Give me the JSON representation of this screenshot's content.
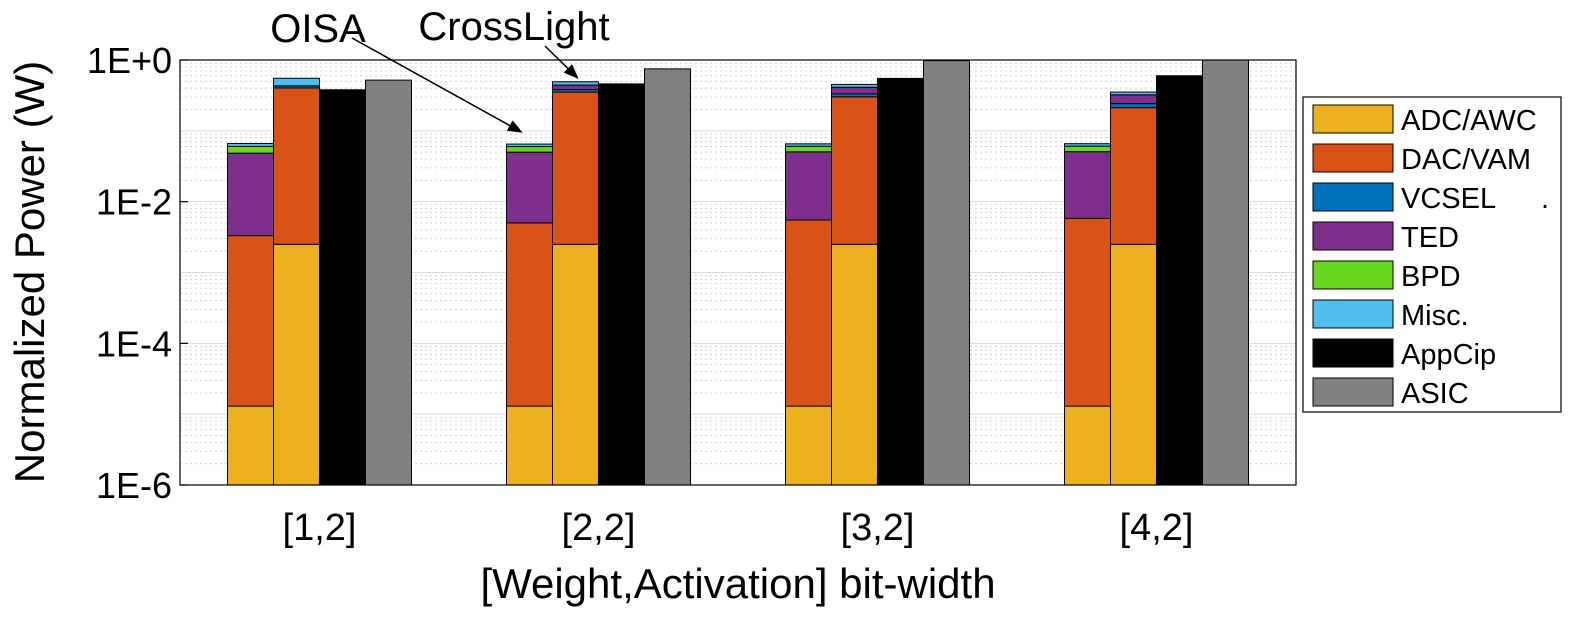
{
  "chart_data": {
    "type": "bar",
    "stacked_groups": true,
    "ylabel": "Normalized Power  (W)",
    "xlabel": "[Weight,Activation] bit-width",
    "yscale": "log",
    "ylim": [
      1e-06,
      1
    ],
    "ytick_values": [
      1e-06,
      0.0001,
      0.01,
      1
    ],
    "ytick_labels": [
      "1E-6",
      "1E-4",
      "1E-2",
      "1E+0"
    ],
    "grid": true,
    "legend_position": "right",
    "categories": [
      "[1,2]",
      "[2,2]",
      "[3,2]",
      "[4,2]"
    ],
    "components": [
      {
        "name": "ADC/AWC",
        "color": "#EDB120"
      },
      {
        "name": "DAC/VAM",
        "color": "#D95319"
      },
      {
        "name": "VCSEL",
        "color": "#0072BD"
      },
      {
        "name": "TED",
        "color": "#7E2F8E"
      },
      {
        "name": "BPD",
        "color": "#66D61E"
      },
      {
        "name": "Misc.",
        "color": "#4DBEEE"
      },
      {
        "name": "AppCip",
        "color": "#000000"
      },
      {
        "name": "ASIC",
        "color": "#808080"
      }
    ],
    "series": [
      {
        "name": "OISA",
        "stacked": true,
        "values": [
          {
            "ADC/AWC": 1.3e-05,
            "DAC/VAM": 0.0033,
            "VCSEL": 0.0,
            "TED": 0.045,
            "BPD": 0.012,
            "Misc.": 0.006
          },
          {
            "ADC/AWC": 1.3e-05,
            "DAC/VAM": 0.005,
            "VCSEL": 0.0,
            "TED": 0.045,
            "BPD": 0.01,
            "Misc.": 0.005
          },
          {
            "ADC/AWC": 1.3e-05,
            "DAC/VAM": 0.0055,
            "VCSEL": 0.0,
            "TED": 0.045,
            "BPD": 0.01,
            "Misc.": 0.005
          },
          {
            "ADC/AWC": 1.3e-05,
            "DAC/VAM": 0.0058,
            "VCSEL": 0.0,
            "TED": 0.045,
            "BPD": 0.01,
            "Misc.": 0.005
          }
        ]
      },
      {
        "name": "CrossLight",
        "stacked": true,
        "values": [
          {
            "ADC/AWC": 0.0025,
            "DAC/VAM": 0.4,
            "VCSEL": 0.03,
            "TED": 0.0,
            "BPD": 0.0,
            "Misc.": 0.12
          },
          {
            "ADC/AWC": 0.0025,
            "DAC/VAM": 0.35,
            "VCSEL": 0.03,
            "TED": 0.06,
            "BPD": 0.0,
            "Misc.": 0.05
          },
          {
            "ADC/AWC": 0.0025,
            "DAC/VAM": 0.3,
            "VCSEL": 0.03,
            "TED": 0.08,
            "BPD": 0.0,
            "Misc.": 0.04
          },
          {
            "ADC/AWC": 0.0025,
            "DAC/VAM": 0.21,
            "VCSEL": 0.03,
            "TED": 0.08,
            "BPD": 0.0,
            "Misc.": 0.03
          }
        ]
      },
      {
        "name": "AppCip",
        "stacked": false,
        "values": [
          0.38,
          0.46,
          0.55,
          0.6
        ]
      },
      {
        "name": "ASIC",
        "stacked": false,
        "values": [
          0.52,
          0.75,
          0.98,
          1.0
        ]
      }
    ],
    "annotations": [
      {
        "text": "OISA",
        "points_to_series": "OISA",
        "category": "[2,2]"
      },
      {
        "text": "CrossLight",
        "points_to_series": "CrossLight",
        "category": "[2,2]"
      }
    ],
    "legend": [
      "ADC/AWC",
      "DAC/VAM",
      "VCSEL",
      "TED",
      "BPD",
      "Misc.",
      "AppCip",
      "ASIC"
    ],
    "legend_extra_mark": "."
  }
}
